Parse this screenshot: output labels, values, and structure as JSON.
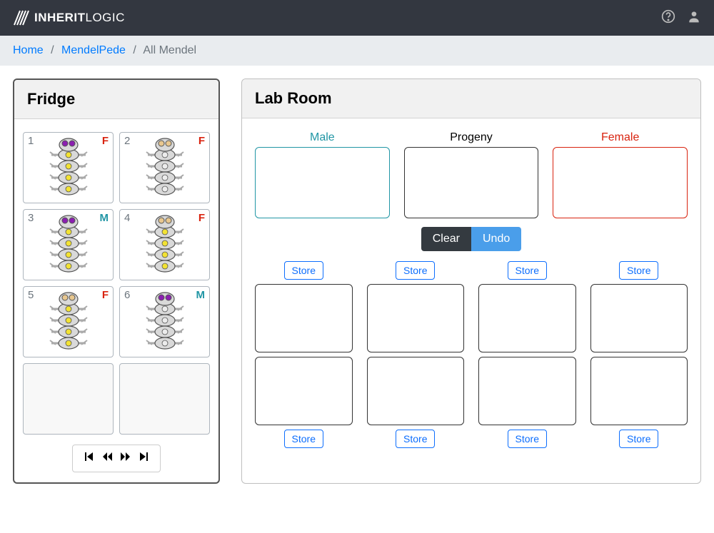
{
  "navbar": {
    "brand_bold": "INHERIT",
    "brand_light": "LOGIC"
  },
  "breadcrumb": {
    "home": "Home",
    "mendelpede": "MendelPede",
    "current": "All Mendel"
  },
  "fridge": {
    "title": "Fridge",
    "slots": [
      {
        "num": "1",
        "sex": "F",
        "eyes": "#8b1fb0",
        "body_spot": "#f2e233"
      },
      {
        "num": "2",
        "sex": "F",
        "eyes": "#e8c78f",
        "body_spot": "#ececec"
      },
      {
        "num": "3",
        "sex": "M",
        "eyes": "#8b1fb0",
        "body_spot": "#f2e233"
      },
      {
        "num": "4",
        "sex": "F",
        "eyes": "#e8c78f",
        "body_spot": "#f2e233"
      },
      {
        "num": "5",
        "sex": "F",
        "eyes": "#e8c78f",
        "body_spot": "#f2e233"
      },
      {
        "num": "6",
        "sex": "M",
        "eyes": "#8b1fb0",
        "body_spot": "#ececec"
      }
    ],
    "empty_slots": 2
  },
  "lab": {
    "title": "Lab Room",
    "male_label": "Male",
    "progeny_label": "Progeny",
    "female_label": "Female",
    "clear_label": "Clear",
    "undo_label": "Undo",
    "store_label": "Store",
    "progeny_count": 8
  },
  "colors": {
    "navbar_bg": "#333740",
    "breadcrumb_bg": "#e9ecef",
    "link": "#007bff",
    "male": "#2196a5",
    "female": "#d9230f",
    "btn_dark": "#343a40",
    "btn_primary": "#4a9eea",
    "store_border": "#0d6efd",
    "pede_body": "#d9d9d9",
    "pede_outline": "#555555"
  }
}
